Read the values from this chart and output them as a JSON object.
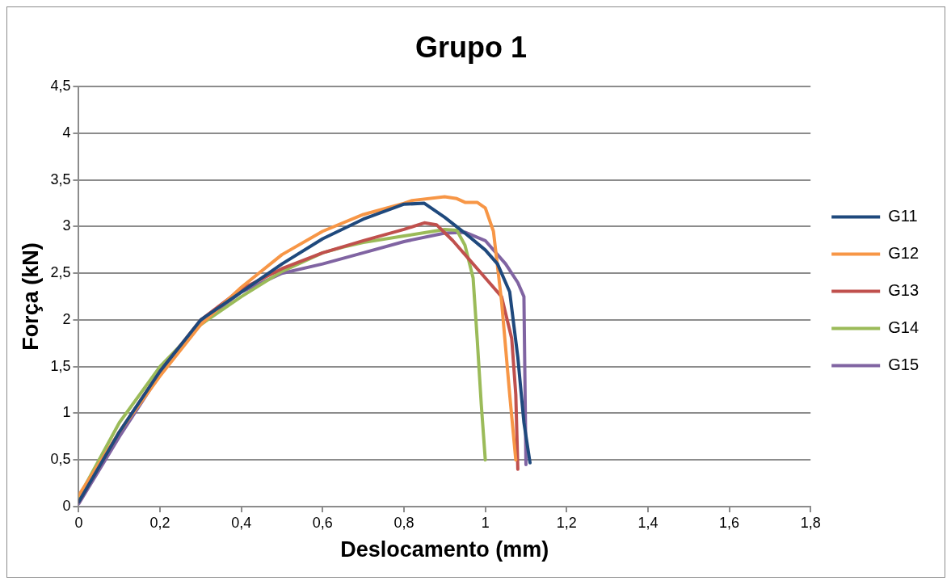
{
  "chart_data": {
    "type": "line",
    "title": "Grupo 1",
    "xlabel": "Deslocamento (mm)",
    "ylabel": "Força (kN)",
    "xlim": [
      0,
      1.8
    ],
    "xticks": [
      0,
      {
        "value": 0.2,
        "label": "0,2"
      },
      {
        "value": 0.4,
        "label": "0,4"
      },
      {
        "value": 0.6,
        "label": "0,6"
      },
      {
        "value": 0.8,
        "label": "0,8"
      },
      1,
      {
        "value": 1.2,
        "label": "1,2"
      },
      {
        "value": 1.4,
        "label": "1,4"
      },
      {
        "value": 1.6,
        "label": "1,6"
      },
      {
        "value": 1.8,
        "label": "1,8"
      }
    ],
    "ylim": [
      0,
      4.5
    ],
    "yticks": [
      0,
      {
        "value": 0.5,
        "label": "0,5"
      },
      1,
      {
        "value": 1.5,
        "label": "1,5"
      },
      2,
      {
        "value": 2.5,
        "label": "2,5"
      },
      3,
      {
        "value": 3.5,
        "label": "3,5"
      },
      4,
      {
        "value": 4.5,
        "label": "4,5"
      }
    ],
    "grid": "y",
    "legend": "right",
    "marker": "none",
    "line_style": "solid",
    "series": [
      {
        "name": "G11",
        "color": "#1f497d",
        "x": [
          0,
          0.1,
          0.2,
          0.3,
          0.4,
          0.5,
          0.6,
          0.7,
          0.8,
          0.85,
          0.9,
          0.95,
          1.0,
          1.03,
          1.06,
          1.08,
          1.095,
          1.11
        ],
        "values": [
          0.05,
          0.8,
          1.45,
          2.0,
          2.3,
          2.6,
          2.87,
          3.08,
          3.24,
          3.25,
          3.1,
          2.93,
          2.75,
          2.6,
          2.3,
          1.6,
          0.9,
          0.47
        ]
      },
      {
        "name": "G12",
        "color": "#f79646",
        "x": [
          0,
          0.1,
          0.2,
          0.3,
          0.4,
          0.5,
          0.6,
          0.7,
          0.8,
          0.82,
          0.9,
          0.93,
          0.95,
          0.98,
          1.0,
          1.02,
          1.04,
          1.06,
          1.075
        ],
        "values": [
          0.12,
          0.8,
          1.4,
          1.95,
          2.35,
          2.7,
          2.95,
          3.13,
          3.25,
          3.28,
          3.32,
          3.3,
          3.26,
          3.26,
          3.2,
          2.95,
          2.2,
          1.2,
          0.5
        ]
      },
      {
        "name": "G13",
        "color": "#c0504d",
        "x": [
          0,
          0.1,
          0.2,
          0.3,
          0.4,
          0.5,
          0.6,
          0.7,
          0.8,
          0.85,
          0.88,
          0.92,
          0.96,
          1.0,
          1.04,
          1.065,
          1.075,
          1.08
        ],
        "values": [
          0.05,
          0.8,
          1.45,
          2.0,
          2.33,
          2.55,
          2.72,
          2.85,
          2.97,
          3.04,
          3.02,
          2.85,
          2.65,
          2.45,
          2.25,
          1.8,
          1.2,
          0.4
        ]
      },
      {
        "name": "G14",
        "color": "#9bbb59",
        "x": [
          0,
          0.1,
          0.2,
          0.3,
          0.4,
          0.5,
          0.6,
          0.65,
          0.7,
          0.8,
          0.9,
          0.93,
          0.95,
          0.97,
          0.98,
          0.99,
          1.0
        ],
        "values": [
          0.1,
          0.9,
          1.5,
          1.95,
          2.25,
          2.52,
          2.72,
          2.78,
          2.83,
          2.9,
          2.97,
          2.96,
          2.8,
          2.45,
          1.8,
          1.1,
          0.5
        ]
      },
      {
        "name": "G15",
        "color": "#8064a2",
        "x": [
          0,
          0.1,
          0.2,
          0.3,
          0.4,
          0.5,
          0.6,
          0.7,
          0.8,
          0.9,
          0.95,
          1.0,
          1.05,
          1.08,
          1.095,
          1.1
        ],
        "values": [
          0.03,
          0.75,
          1.42,
          1.97,
          2.3,
          2.5,
          2.6,
          2.72,
          2.84,
          2.93,
          2.94,
          2.85,
          2.6,
          2.4,
          2.25,
          0.45
        ]
      }
    ]
  }
}
